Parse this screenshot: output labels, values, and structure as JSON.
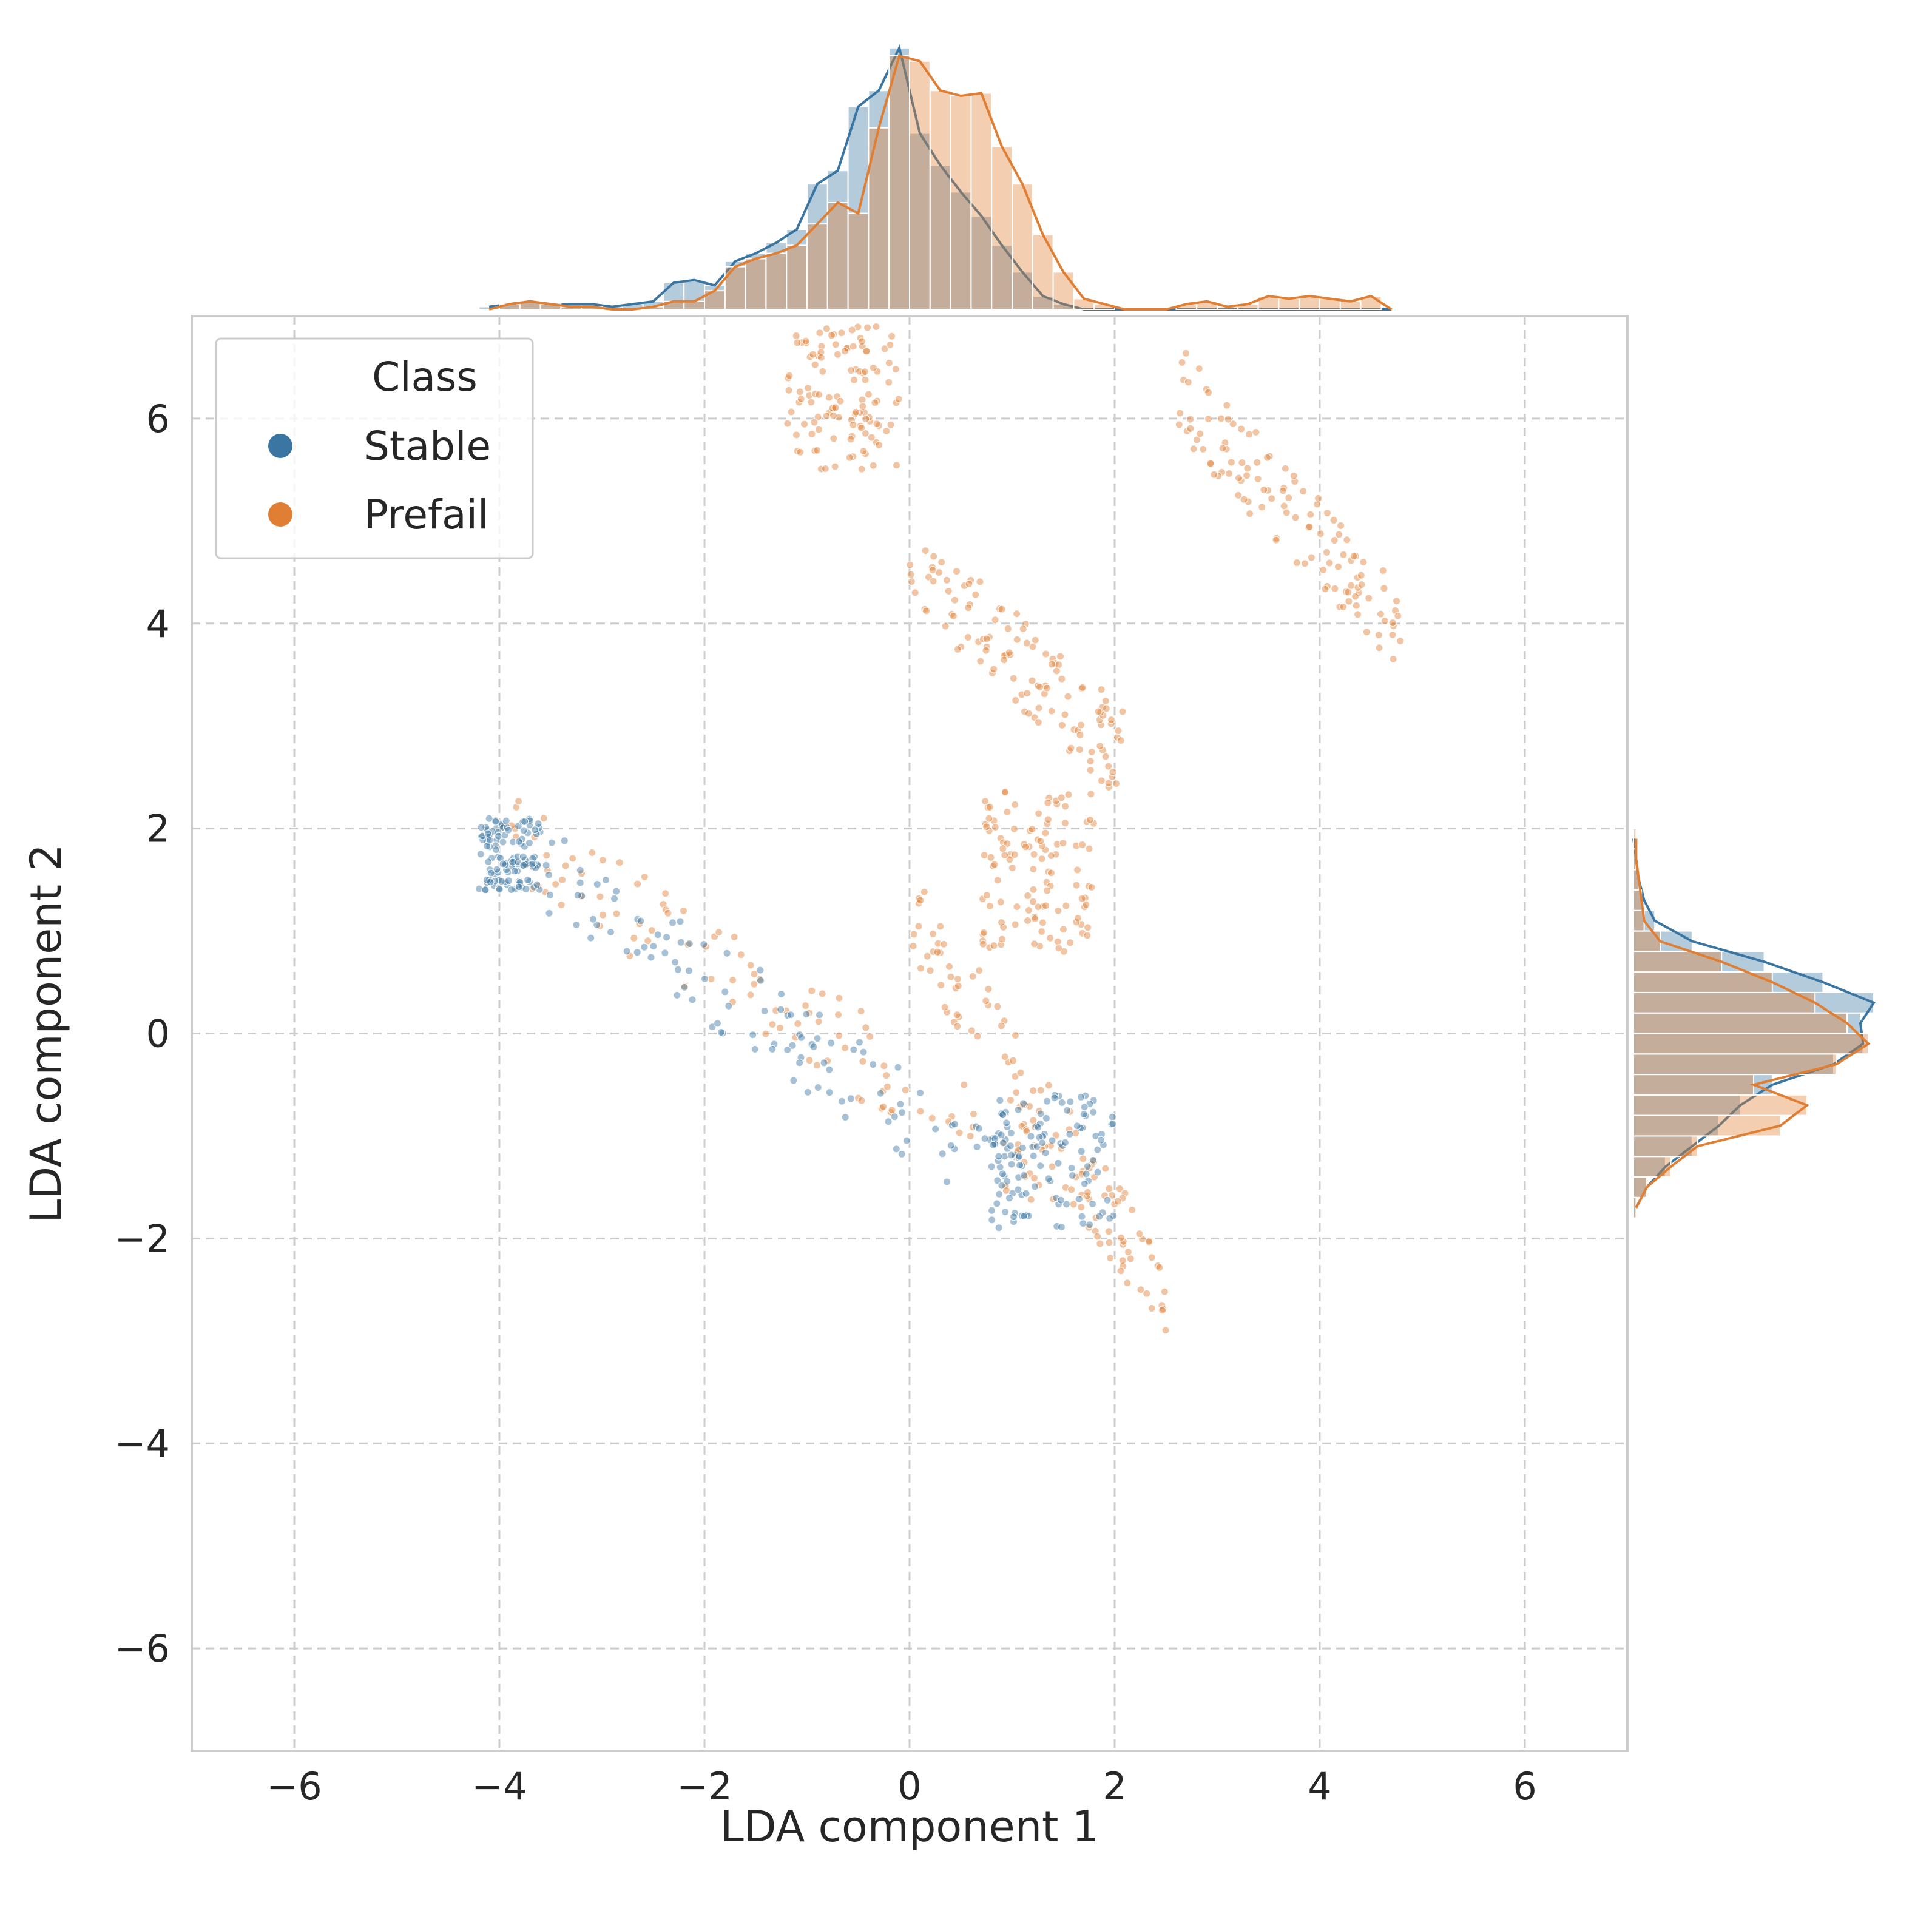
{
  "chart_data": {
    "type": "scatter",
    "subtype": "jointplot with marginal histograms and KDE",
    "title": "",
    "xlabel": "LDA component 1",
    "ylabel": "LDA component 2",
    "xlim": [
      -7,
      7
    ],
    "ylim": [
      -7,
      7
    ],
    "xticks": [
      -6,
      -4,
      -2,
      0,
      2,
      4,
      6
    ],
    "yticks": [
      -6,
      -4,
      -2,
      0,
      2,
      4,
      6
    ],
    "xtick_labels": [
      "−6",
      "−4",
      "−2",
      "0",
      "2",
      "4",
      "6"
    ],
    "ytick_labels": [
      "−6",
      "−4",
      "−2",
      "0",
      "2",
      "4",
      "6"
    ],
    "grid": true,
    "grid_style": "dashed",
    "legend": {
      "title": "Class",
      "placement": "top-left",
      "entries": [
        "Stable",
        "Prefail"
      ]
    },
    "colors": {
      "Stable": "#3a76a1",
      "Prefail": "#e07f33",
      "grid": "#cccccc",
      "axes": "#cccccc",
      "text": "#262626"
    },
    "series": [
      {
        "name": "Stable",
        "clusters": [
          {
            "x_range": [
              -4.2,
              -3.6
            ],
            "y_range": [
              1.4,
              2.1
            ]
          },
          {
            "x_range": [
              -3.6,
              1.2
            ],
            "y_range": [
              -1.6,
              1.6
            ]
          },
          {
            "x_range": [
              0.8,
              2.0
            ],
            "y_range": [
              -1.9,
              -0.6
            ]
          }
        ]
      },
      {
        "name": "Prefail",
        "clusters": [
          {
            "x_range": [
              -1.2,
              -0.1
            ],
            "y_range": [
              5.5,
              6.9
            ]
          },
          {
            "x_range": [
              2.6,
              4.8
            ],
            "y_range": [
              3.9,
              6.3
            ]
          },
          {
            "x_range": [
              0.0,
              2.1
            ],
            "y_range": [
              2.7,
              4.6
            ]
          },
          {
            "x_range": [
              0.7,
              1.8
            ],
            "y_range": [
              0.8,
              2.4
            ]
          },
          {
            "x_range": [
              -4.0,
              1.6
            ],
            "y_range": [
              -1.5,
              2.0
            ]
          },
          {
            "x_range": [
              0.0,
              2.5
            ],
            "y_range": [
              -2.6,
              1.2
            ]
          }
        ]
      }
    ],
    "marginal_x": {
      "bin_edges": [
        -4.2,
        -4.0,
        -3.8,
        -3.6,
        -3.4,
        -3.2,
        -3.0,
        -2.8,
        -2.6,
        -2.4,
        -2.2,
        -2.0,
        -1.8,
        -1.6,
        -1.4,
        -1.2,
        -1.0,
        -0.8,
        -0.6,
        -0.4,
        -0.2,
        0.0,
        0.2,
        0.4,
        0.6,
        0.8,
        1.0,
        1.2,
        1.4,
        1.6,
        1.8,
        2.0,
        2.2,
        2.4,
        2.6,
        2.8,
        3.0,
        3.2,
        3.4,
        3.6,
        3.8,
        4.0,
        4.2,
        4.4,
        4.6,
        4.8
      ],
      "Stable": [
        0.01,
        0.02,
        0.03,
        0.02,
        0.02,
        0.02,
        0.01,
        0.02,
        0.03,
        0.1,
        0.11,
        0.09,
        0.18,
        0.21,
        0.25,
        0.3,
        0.47,
        0.52,
        0.76,
        0.82,
        0.98,
        0.66,
        0.54,
        0.44,
        0.35,
        0.24,
        0.14,
        0.05,
        0.02,
        0.0,
        0.0,
        0.0,
        0.0,
        0.0,
        0.0,
        0.0,
        0.0,
        0.0,
        0.0,
        0.0,
        0.0,
        0.0,
        0.0,
        0.0,
        0.0
      ],
      "Prefail": [
        0.0,
        0.02,
        0.03,
        0.02,
        0.01,
        0.01,
        0.0,
        0.0,
        0.01,
        0.03,
        0.03,
        0.07,
        0.16,
        0.19,
        0.21,
        0.24,
        0.32,
        0.4,
        0.36,
        0.68,
        0.95,
        0.93,
        0.82,
        0.8,
        0.81,
        0.61,
        0.47,
        0.28,
        0.14,
        0.04,
        0.02,
        0.0,
        0.0,
        0.0,
        0.02,
        0.03,
        0.01,
        0.02,
        0.05,
        0.04,
        0.05,
        0.04,
        0.03,
        0.05,
        0.0
      ]
    },
    "marginal_y": {
      "bin_edges": [
        -1.8,
        -1.6,
        -1.4,
        -1.2,
        -1.0,
        -0.8,
        -0.6,
        -0.4,
        -0.2,
        0.0,
        0.2,
        0.4,
        0.6,
        0.8,
        1.0,
        1.2,
        1.4,
        1.6,
        1.8,
        2.0
      ],
      "Stable": [
        0.01,
        0.05,
        0.12,
        0.22,
        0.32,
        0.4,
        0.52,
        0.75,
        0.86,
        0.85,
        0.9,
        0.71,
        0.49,
        0.22,
        0.08,
        0.04,
        0.02,
        0.01,
        0.0
      ],
      "Prefail": [
        0.01,
        0.05,
        0.14,
        0.24,
        0.55,
        0.65,
        0.45,
        0.76,
        0.88,
        0.8,
        0.68,
        0.52,
        0.33,
        0.1,
        0.04,
        0.03,
        0.02,
        0.01,
        0.01
      ]
    }
  }
}
